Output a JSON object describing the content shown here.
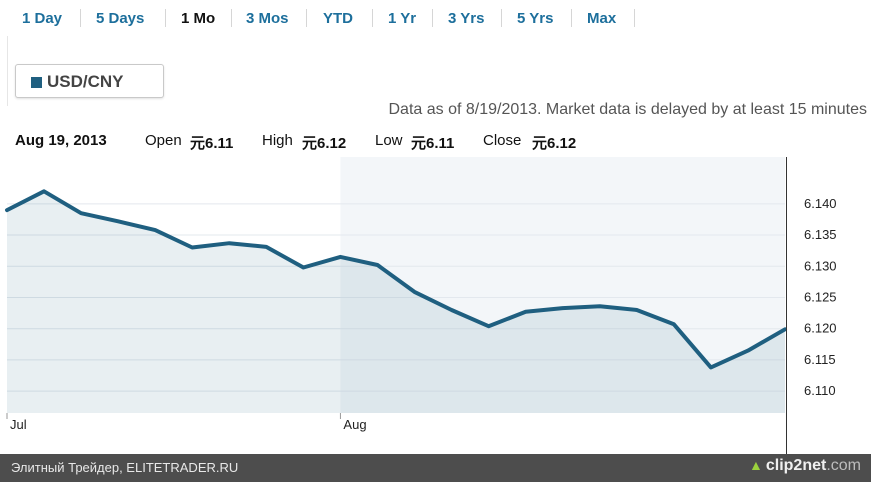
{
  "range_tabs": [
    {
      "label": "1 Day",
      "active": false
    },
    {
      "label": "5 Days",
      "active": false
    },
    {
      "label": "1 Mo",
      "active": true
    },
    {
      "label": "3 Mos",
      "active": false
    },
    {
      "label": "YTD",
      "active": false
    },
    {
      "label": "1 Yr",
      "active": false
    },
    {
      "label": "3 Yrs",
      "active": false
    },
    {
      "label": "5 Yrs",
      "active": false
    },
    {
      "label": "Max",
      "active": false
    }
  ],
  "legend": {
    "label": "USD/CNY",
    "color": "#1f5f80"
  },
  "data_note": "Data as of 8/19/2013. Market data is delayed by at least 15 minutes",
  "ohlc": {
    "date": "Aug 19, 2013",
    "open_label": "Open",
    "open_value": "元6.11",
    "high_label": "High",
    "high_value": "元6.12",
    "low_label": "Low",
    "low_value": "元6.11",
    "close_label": "Close",
    "close_value": "元6.12"
  },
  "chart_data": {
    "type": "area",
    "series": [
      {
        "name": "USD/CNY",
        "color": "#1f5f80",
        "values": [
          6.139,
          6.142,
          6.1385,
          6.1372,
          6.1358,
          6.133,
          6.1337,
          6.1331,
          6.1298,
          6.1315,
          6.1302,
          6.1259,
          6.123,
          6.1204,
          6.1227,
          6.1233,
          6.1236,
          6.123,
          6.1207,
          6.1138,
          6.1165,
          6.1199
        ]
      }
    ],
    "x_tick_labels": [
      {
        "label": "Jul",
        "index": 0
      },
      {
        "label": "Aug",
        "index": 9
      }
    ],
    "y_tick_labels": [
      "6.140",
      "6.135",
      "6.130",
      "6.125",
      "6.120",
      "6.115",
      "6.110"
    ],
    "y_ticks": [
      6.14,
      6.135,
      6.13,
      6.125,
      6.12,
      6.115,
      6.11
    ],
    "ylim": [
      6.1065,
      6.1475
    ],
    "highlight_from_index": 9,
    "grid": "horizontal"
  },
  "footer": {
    "text": "Элитный Трейдер, ELITETRADER.RU",
    "brand_main": "clip2net",
    "brand_tld": ".com"
  }
}
